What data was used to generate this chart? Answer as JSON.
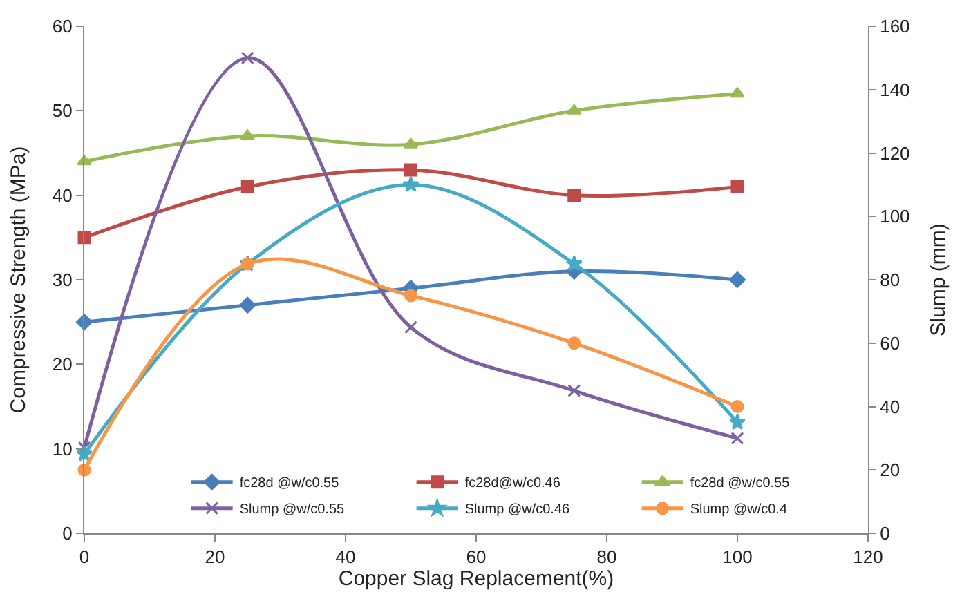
{
  "chart_data": {
    "type": "line",
    "xlabel": "Copper Slag Replacement(%)",
    "ylabel": "Compressive Strength (MPa)",
    "y2label": "Slump (mm)",
    "x": [
      0,
      25,
      50,
      75,
      100
    ],
    "xlim": [
      0,
      120
    ],
    "xticks": [
      0,
      20,
      40,
      60,
      80,
      100,
      120
    ],
    "ylim": [
      0,
      60
    ],
    "yticks": [
      0,
      10,
      20,
      30,
      40,
      50,
      60
    ],
    "y2lim": [
      0,
      160
    ],
    "y2ticks": [
      0,
      20,
      40,
      60,
      80,
      100,
      120,
      140,
      160
    ],
    "legend": "bottom right",
    "series": [
      {
        "name": "fc28d @w/c0.55",
        "color": "#4a7ebb",
        "marker": "diamond",
        "values": [
          25,
          27,
          29,
          31,
          30
        ]
      },
      {
        "name": "fc28d@w/c0.46",
        "color": "#be4b48",
        "marker": "square",
        "values": [
          35,
          41,
          43,
          40,
          41
        ]
      },
      {
        "name": "fc28d @w/c0.55",
        "color": "#98b954",
        "marker": "triangle",
        "values": [
          44,
          47,
          46,
          50,
          52
        ]
      },
      {
        "name": "Slump @w/c0.55",
        "color": "#7d60a0",
        "marker": "cross",
        "axis": "y2",
        "values": [
          27,
          150,
          65,
          45,
          30
        ]
      },
      {
        "name": "Slump @w/c0.46",
        "color": "#46aac5",
        "marker": "star",
        "axis": "y2",
        "values": [
          25,
          85,
          110,
          85,
          35
        ]
      },
      {
        "name": "Slump @w/c0.4",
        "color": "#f79646",
        "marker": "circle",
        "axis": "y2",
        "values": [
          20,
          85,
          75,
          60,
          40
        ]
      }
    ]
  }
}
